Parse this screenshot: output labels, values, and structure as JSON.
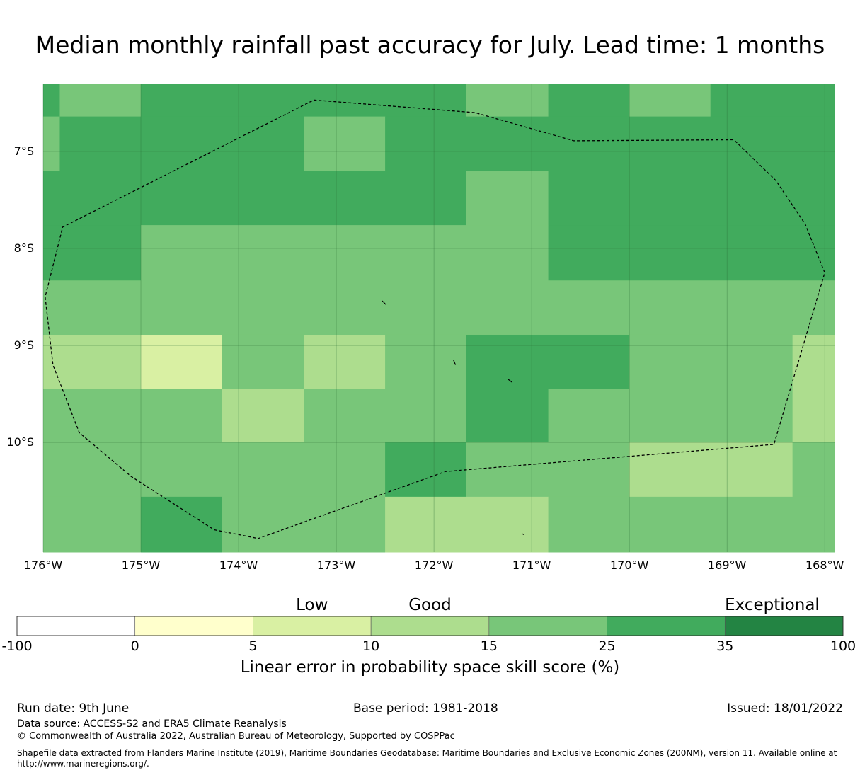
{
  "title": "Median monthly rainfall past accuracy for July. Lead time: 1 months",
  "map": {
    "lon_range": [
      -176,
      -167.9
    ],
    "lat_range": [
      -11.13,
      -6.3
    ],
    "y_ticks": [
      "7°S",
      "8°S",
      "9°S",
      "10°S"
    ],
    "x_ticks": [
      "176°W",
      "175°W",
      "174°W",
      "173°W",
      "172°W",
      "171°W",
      "170°W",
      "169°W",
      "168°W"
    ],
    "legend_bins_colors": [
      "#ffffff",
      "#ffffcc",
      "#d9f0a3",
      "#addd8e",
      "#78c679",
      "#41ab5d",
      "#238443"
    ],
    "grid_cells": [
      {
        "lon": [
          -176.0,
          -175.83
        ],
        "lat": [
          -6.64,
          -6.3
        ],
        "score_bin": "25-35"
      },
      {
        "lon": [
          -175.83,
          -175.0
        ],
        "lat": [
          -6.64,
          -6.3
        ],
        "score_bin": "15-25"
      },
      {
        "lon": [
          -175.0,
          -171.67
        ],
        "lat": [
          -6.64,
          -6.3
        ],
        "score_bin": "25-35"
      },
      {
        "lon": [
          -171.67,
          -170.83
        ],
        "lat": [
          -6.64,
          -6.3
        ],
        "score_bin": "15-25"
      },
      {
        "lon": [
          -170.83,
          -170.0
        ],
        "lat": [
          -6.64,
          -6.3
        ],
        "score_bin": "25-35"
      },
      {
        "lon": [
          -170.0,
          -169.17
        ],
        "lat": [
          -6.64,
          -6.3
        ],
        "score_bin": "15-25"
      },
      {
        "lon": [
          -169.17,
          -167.9
        ],
        "lat": [
          -6.64,
          -6.3
        ],
        "score_bin": "25-35"
      },
      {
        "lon": [
          -176.0,
          -175.83
        ],
        "lat": [
          -7.2,
          -6.64
        ],
        "score_bin": "15-25"
      },
      {
        "lon": [
          -175.83,
          -173.33
        ],
        "lat": [
          -7.2,
          -6.64
        ],
        "score_bin": "25-35"
      },
      {
        "lon": [
          -173.33,
          -172.5
        ],
        "lat": [
          -7.2,
          -6.64
        ],
        "score_bin": "15-25"
      },
      {
        "lon": [
          -172.5,
          -167.9
        ],
        "lat": [
          -7.2,
          -6.64
        ],
        "score_bin": "25-35"
      },
      {
        "lon": [
          -176.0,
          -171.67
        ],
        "lat": [
          -7.76,
          -7.2
        ],
        "score_bin": "25-35"
      },
      {
        "lon": [
          -171.67,
          -170.83
        ],
        "lat": [
          -7.76,
          -7.2
        ],
        "score_bin": "15-25"
      },
      {
        "lon": [
          -170.83,
          -167.9
        ],
        "lat": [
          -7.76,
          -7.2
        ],
        "score_bin": "25-35"
      },
      {
        "lon": [
          -176.0,
          -175.0
        ],
        "lat": [
          -8.33,
          -7.76
        ],
        "score_bin": "25-35"
      },
      {
        "lon": [
          -175.0,
          -170.83
        ],
        "lat": [
          -8.33,
          -7.76
        ],
        "score_bin": "15-25"
      },
      {
        "lon": [
          -170.83,
          -167.9
        ],
        "lat": [
          -8.33,
          -7.76
        ],
        "score_bin": "25-35"
      },
      {
        "lon": [
          -176.0,
          -167.9
        ],
        "lat": [
          -8.89,
          -8.33
        ],
        "score_bin": "15-25"
      },
      {
        "lon": [
          -176.0,
          -175.0
        ],
        "lat": [
          -9.45,
          -8.89
        ],
        "score_bin": "10-15"
      },
      {
        "lon": [
          -175.0,
          -174.17
        ],
        "lat": [
          -9.45,
          -8.89
        ],
        "score_bin": "5-10"
      },
      {
        "lon": [
          -174.17,
          -173.33
        ],
        "lat": [
          -9.45,
          -8.89
        ],
        "score_bin": "15-25"
      },
      {
        "lon": [
          -173.33,
          -172.5
        ],
        "lat": [
          -9.45,
          -8.89
        ],
        "score_bin": "10-15"
      },
      {
        "lon": [
          -172.5,
          -171.67
        ],
        "lat": [
          -9.45,
          -8.89
        ],
        "score_bin": "15-25"
      },
      {
        "lon": [
          -171.67,
          -170.0
        ],
        "lat": [
          -9.45,
          -8.89
        ],
        "score_bin": "25-35"
      },
      {
        "lon": [
          -170.0,
          -168.33
        ],
        "lat": [
          -9.45,
          -8.89
        ],
        "score_bin": "15-25"
      },
      {
        "lon": [
          -168.33,
          -167.9
        ],
        "lat": [
          -9.45,
          -8.89
        ],
        "score_bin": "10-15"
      },
      {
        "lon": [
          -176.0,
          -174.17
        ],
        "lat": [
          -10.0,
          -9.45
        ],
        "score_bin": "15-25"
      },
      {
        "lon": [
          -174.17,
          -173.33
        ],
        "lat": [
          -10.0,
          -9.45
        ],
        "score_bin": "10-15"
      },
      {
        "lon": [
          -173.33,
          -171.67
        ],
        "lat": [
          -10.0,
          -9.45
        ],
        "score_bin": "15-25"
      },
      {
        "lon": [
          -171.67,
          -170.83
        ],
        "lat": [
          -10.0,
          -9.45
        ],
        "score_bin": "25-35"
      },
      {
        "lon": [
          -170.83,
          -168.33
        ],
        "lat": [
          -10.0,
          -9.45
        ],
        "score_bin": "15-25"
      },
      {
        "lon": [
          -168.33,
          -167.9
        ],
        "lat": [
          -10.0,
          -9.45
        ],
        "score_bin": "10-15"
      },
      {
        "lon": [
          -176.0,
          -172.5
        ],
        "lat": [
          -10.56,
          -10.0
        ],
        "score_bin": "15-25"
      },
      {
        "lon": [
          -172.5,
          -171.67
        ],
        "lat": [
          -10.56,
          -10.0
        ],
        "score_bin": "25-35"
      },
      {
        "lon": [
          -171.67,
          -170.0
        ],
        "lat": [
          -10.56,
          -10.0
        ],
        "score_bin": "15-25"
      },
      {
        "lon": [
          -170.0,
          -168.33
        ],
        "lat": [
          -10.56,
          -10.0
        ],
        "score_bin": "10-15"
      },
      {
        "lon": [
          -168.33,
          -167.9
        ],
        "lat": [
          -10.56,
          -10.0
        ],
        "score_bin": "15-25"
      },
      {
        "lon": [
          -176.0,
          -175.0
        ],
        "lat": [
          -11.13,
          -10.56
        ],
        "score_bin": "15-25"
      },
      {
        "lon": [
          -175.0,
          -174.17
        ],
        "lat": [
          -11.13,
          -10.56
        ],
        "score_bin": "25-35"
      },
      {
        "lon": [
          -174.17,
          -172.5
        ],
        "lat": [
          -11.13,
          -10.56
        ],
        "score_bin": "15-25"
      },
      {
        "lon": [
          -172.5,
          -170.83
        ],
        "lat": [
          -11.13,
          -10.56
        ],
        "score_bin": "10-15"
      },
      {
        "lon": [
          -170.83,
          -167.9
        ],
        "lat": [
          -11.13,
          -10.56
        ],
        "score_bin": "15-25"
      }
    ],
    "eez_boundary": [
      [
        -173.23,
        -6.47
      ],
      [
        -171.58,
        -6.6
      ],
      [
        -170.57,
        -6.89
      ],
      [
        -168.93,
        -6.88
      ],
      [
        -168.5,
        -7.3
      ],
      [
        -168.2,
        -7.75
      ],
      [
        -168.0,
        -8.25
      ],
      [
        -168.52,
        -10.02
      ],
      [
        -171.88,
        -10.3
      ],
      [
        -173.8,
        -10.99
      ],
      [
        -174.25,
        -10.9
      ],
      [
        -175.1,
        -10.35
      ],
      [
        -175.63,
        -9.9
      ],
      [
        -175.9,
        -9.2
      ],
      [
        -175.98,
        -8.5
      ],
      [
        -175.8,
        -7.78
      ],
      [
        -173.23,
        -6.47
      ]
    ],
    "islands": [
      [
        [
          -172.53,
          -8.54
        ],
        [
          -172.49,
          -8.58
        ]
      ],
      [
        [
          -171.8,
          -9.15
        ],
        [
          -171.78,
          -9.2
        ]
      ],
      [
        [
          -171.24,
          -9.35
        ],
        [
          -171.2,
          -9.38
        ]
      ],
      [
        [
          -171.1,
          -10.94
        ],
        [
          -171.08,
          -10.95
        ]
      ]
    ]
  },
  "colorbar": {
    "category_labels": [
      {
        "text": "Low",
        "at": 2.5
      },
      {
        "text": "Good",
        "at": 3.5
      },
      {
        "text": "Exceptional",
        "at": 6.4
      }
    ],
    "bin_colors": [
      "#ffffff",
      "#ffffcc",
      "#d9f0a3",
      "#addd8e",
      "#78c679",
      "#41ab5d",
      "#238443"
    ],
    "ticks": [
      "-100",
      "0",
      "5",
      "10",
      "15",
      "25",
      "35",
      "100"
    ],
    "label": "Linear error in probability space skill score (%)"
  },
  "footer": {
    "run_date": "Run date: 9th June",
    "base_period": "Base period: 1981-2018",
    "issued": "Issued: 18/01/2022",
    "data_source": "Data source: ACCESS-S2 and ERA5 Climate Reanalysis",
    "copyright": "© Commonwealth of Australia 2022, Australian Bureau of Meteorology, Supported by COSPPac",
    "shapefile_line1": "Shapefile data extracted from Flanders Marine Institute (2019), Maritime Boundaries Geodatabase: Maritime Boundaries and Exclusive Economic Zones (200NM), version 11. Available online at",
    "shapefile_line2": "http://www.marineregions.org/."
  }
}
